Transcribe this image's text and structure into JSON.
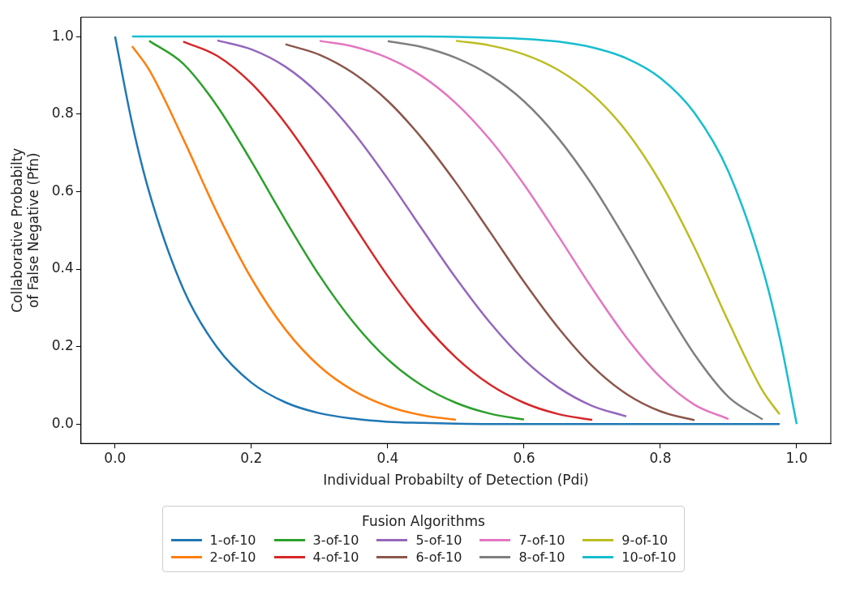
{
  "chart_data": {
    "type": "line",
    "xlabel": "Individual Probabilty of Detection (Pdi)",
    "ylabel": "Collaborative Probabilty\nof False Negative (Pfn)",
    "legend_title": "Fusion Algorithms",
    "legend": "bottom",
    "grid": false,
    "marker": "none",
    "line_style": "solid",
    "xlim": [
      -0.05,
      1.05
    ],
    "ylim": [
      -0.05,
      1.05
    ],
    "xticks": [
      {
        "value": 0,
        "label": "0.0"
      },
      {
        "value": 0.2,
        "label": "0.2"
      },
      {
        "value": 0.4,
        "label": "0.4"
      },
      {
        "value": 0.6,
        "label": "0.6"
      },
      {
        "value": 0.8,
        "label": "0.8"
      },
      {
        "value": 1,
        "label": "1.0"
      }
    ],
    "yticks": [
      {
        "value": 0,
        "label": "0.0"
      },
      {
        "value": 0.2,
        "label": "0.2"
      },
      {
        "value": 0.4,
        "label": "0.4"
      },
      {
        "value": 0.6,
        "label": "0.6"
      },
      {
        "value": 0.8,
        "label": "0.8"
      },
      {
        "value": 1,
        "label": "1.0"
      }
    ],
    "series": [
      {
        "name": "1-of-10",
        "color": "#1f77b4",
        "x": [
          0,
          0.025,
          0.05,
          0.1,
          0.15,
          0.2,
          0.25,
          0.3,
          0.35,
          0.4,
          0.45,
          0.5,
          0.55,
          0.6,
          0.65,
          0.7,
          0.75,
          0.8,
          0.85,
          0.9,
          0.95,
          0.975
        ],
        "values": [
          1,
          0.776,
          0.599,
          0.349,
          0.197,
          0.107,
          0.056,
          0.028,
          0.014,
          0.006,
          0.003,
          0.001,
          0,
          0,
          0,
          0,
          0,
          0,
          0,
          0,
          0,
          0
        ]
      },
      {
        "name": "2-of-10",
        "color": "#ff7f0e",
        "x": [
          0.025,
          0.05,
          0.1,
          0.15,
          0.2,
          0.25,
          0.3,
          0.35,
          0.4,
          0.45,
          0.5
        ],
        "values": [
          0.975,
          0.914,
          0.736,
          0.544,
          0.376,
          0.244,
          0.149,
          0.086,
          0.046,
          0.023,
          0.011
        ]
      },
      {
        "name": "3-of-10",
        "color": "#2ca02c",
        "x": [
          0.05,
          0.1,
          0.15,
          0.2,
          0.25,
          0.3,
          0.35,
          0.4,
          0.45,
          0.5,
          0.55,
          0.6
        ],
        "values": [
          0.989,
          0.93,
          0.82,
          0.678,
          0.526,
          0.383,
          0.262,
          0.167,
          0.1,
          0.055,
          0.027,
          0.012
        ]
      },
      {
        "name": "4-of-10",
        "color": "#d62728",
        "x": [
          0.1,
          0.15,
          0.2,
          0.25,
          0.3,
          0.35,
          0.4,
          0.45,
          0.5,
          0.55,
          0.6,
          0.65,
          0.7
        ],
        "values": [
          0.987,
          0.95,
          0.879,
          0.776,
          0.65,
          0.514,
          0.382,
          0.266,
          0.172,
          0.102,
          0.055,
          0.026,
          0.011
        ]
      },
      {
        "name": "5-of-10",
        "color": "#9467bd",
        "x": [
          0.15,
          0.2,
          0.25,
          0.3,
          0.35,
          0.4,
          0.45,
          0.5,
          0.55,
          0.6,
          0.65,
          0.7,
          0.75
        ],
        "values": [
          0.99,
          0.967,
          0.922,
          0.85,
          0.752,
          0.633,
          0.504,
          0.377,
          0.262,
          0.166,
          0.095,
          0.047,
          0.02
        ]
      },
      {
        "name": "6-of-10",
        "color": "#8c564b",
        "x": [
          0.25,
          0.3,
          0.35,
          0.4,
          0.45,
          0.5,
          0.55,
          0.6,
          0.65,
          0.7,
          0.75,
          0.8,
          0.85
        ],
        "values": [
          0.98,
          0.953,
          0.905,
          0.834,
          0.738,
          0.623,
          0.496,
          0.367,
          0.249,
          0.15,
          0.078,
          0.033,
          0.01
        ]
      },
      {
        "name": "7-of-10",
        "color": "#e377c2",
        "x": [
          0.3,
          0.35,
          0.4,
          0.45,
          0.5,
          0.55,
          0.6,
          0.65,
          0.7,
          0.75,
          0.8,
          0.85,
          0.9
        ],
        "values": [
          0.989,
          0.974,
          0.945,
          0.898,
          0.828,
          0.734,
          0.618,
          0.486,
          0.35,
          0.224,
          0.121,
          0.05,
          0.013
        ]
      },
      {
        "name": "8-of-10",
        "color": "#7f7f7f",
        "x": [
          0.4,
          0.45,
          0.5,
          0.55,
          0.6,
          0.65,
          0.7,
          0.75,
          0.8,
          0.85,
          0.9,
          0.95
        ],
        "values": [
          0.988,
          0.973,
          0.945,
          0.9,
          0.833,
          0.738,
          0.617,
          0.474,
          0.322,
          0.18,
          0.07,
          0.012
        ]
      },
      {
        "name": "9-of-10",
        "color": "#bcbd22",
        "x": [
          0.5,
          0.55,
          0.6,
          0.65,
          0.7,
          0.75,
          0.8,
          0.85,
          0.9,
          0.95,
          0.975
        ],
        "values": [
          0.989,
          0.977,
          0.954,
          0.914,
          0.851,
          0.756,
          0.624,
          0.456,
          0.264,
          0.086,
          0.025
        ]
      },
      {
        "name": "10-of-10",
        "color": "#17becf",
        "x": [
          0.025,
          0.05,
          0.1,
          0.15,
          0.2,
          0.25,
          0.3,
          0.35,
          0.4,
          0.45,
          0.5,
          0.55,
          0.6,
          0.65,
          0.7,
          0.75,
          0.8,
          0.85,
          0.9,
          0.95,
          0.975,
          1
        ],
        "values": [
          1,
          1,
          1,
          1,
          1,
          1,
          1,
          1,
          1,
          1,
          0.999,
          0.997,
          0.994,
          0.987,
          0.972,
          0.944,
          0.893,
          0.803,
          0.651,
          0.401,
          0.224,
          0
        ]
      }
    ]
  }
}
